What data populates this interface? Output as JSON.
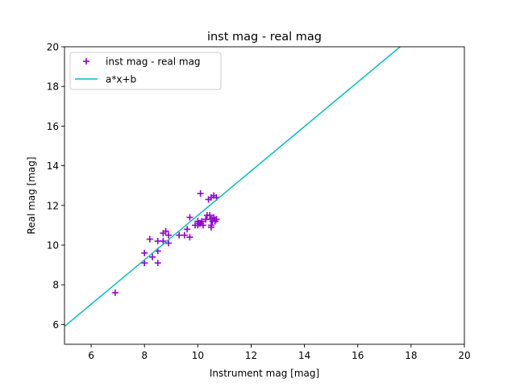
{
  "chart_data": {
    "type": "scatter",
    "title": "inst mag - real mag",
    "xlabel": "Instrument mag [mag]",
    "ylabel": "Real mag [mag]",
    "xlim": [
      5,
      20
    ],
    "ylim": [
      5,
      20
    ],
    "xticks": [
      6,
      8,
      10,
      12,
      14,
      16,
      18,
      20
    ],
    "yticks": [
      6,
      8,
      10,
      12,
      14,
      16,
      18,
      20
    ],
    "grid": false,
    "legend_position": "upper-left",
    "series": [
      {
        "name": "inst mag - real mag",
        "kind": "scatter",
        "marker": "plus",
        "color": "#9400d3",
        "points": [
          [
            6.9,
            7.6
          ],
          [
            8.0,
            9.6
          ],
          [
            8.0,
            9.1
          ],
          [
            8.2,
            10.3
          ],
          [
            8.3,
            9.4
          ],
          [
            8.5,
            9.1
          ],
          [
            8.5,
            9.7
          ],
          [
            8.5,
            10.2
          ],
          [
            8.7,
            10.2
          ],
          [
            8.7,
            10.6
          ],
          [
            8.8,
            10.7
          ],
          [
            8.9,
            10.5
          ],
          [
            8.9,
            10.1
          ],
          [
            9.3,
            10.5
          ],
          [
            9.5,
            10.5
          ],
          [
            9.6,
            10.8
          ],
          [
            9.7,
            10.4
          ],
          [
            9.7,
            11.4
          ],
          [
            9.9,
            11.0
          ],
          [
            10.0,
            11.2
          ],
          [
            10.0,
            11.0
          ],
          [
            10.05,
            11.1
          ],
          [
            10.1,
            12.6
          ],
          [
            10.1,
            11.1
          ],
          [
            10.15,
            11.2
          ],
          [
            10.2,
            11.0
          ],
          [
            10.3,
            11.3
          ],
          [
            10.35,
            11.5
          ],
          [
            10.4,
            12.3
          ],
          [
            10.45,
            11.5
          ],
          [
            10.5,
            12.4
          ],
          [
            10.5,
            11.3
          ],
          [
            10.5,
            11.0
          ],
          [
            10.5,
            10.9
          ],
          [
            10.55,
            11.2
          ],
          [
            10.6,
            11.4
          ],
          [
            10.6,
            12.5
          ],
          [
            10.65,
            11.2
          ],
          [
            10.7,
            12.4
          ],
          [
            10.7,
            11.3
          ]
        ]
      },
      {
        "name": "a*x+b",
        "kind": "line",
        "color": "#00bfbf",
        "slope": 1.12,
        "intercept": 0.3
      }
    ]
  }
}
